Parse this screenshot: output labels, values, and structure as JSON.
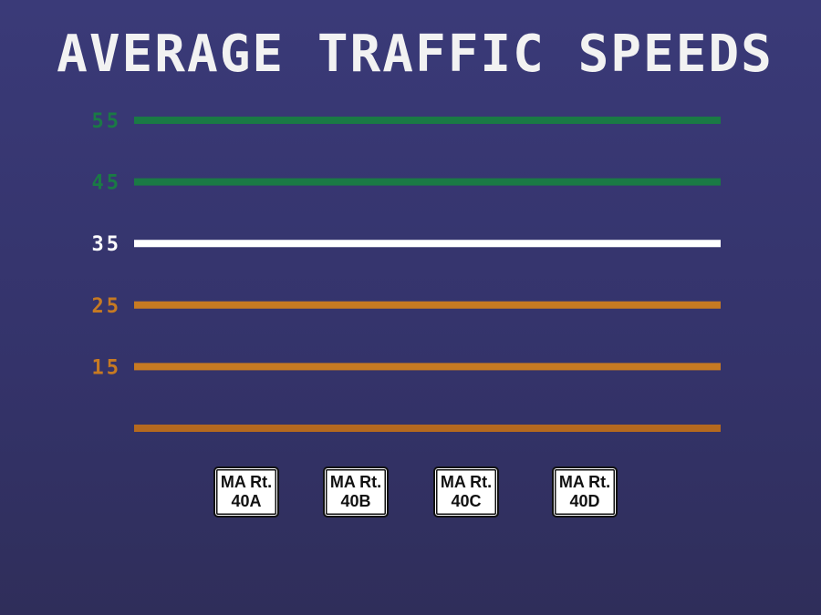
{
  "chart_data": {
    "type": "line",
    "title": "AVERAGE TRAFFIC SPEEDS",
    "ylabel": "",
    "xlabel": "",
    "ylim": [
      5,
      55
    ],
    "y_ticks": [
      {
        "label": "55",
        "value": 55,
        "color": "#1a7a45"
      },
      {
        "label": "45",
        "value": 45,
        "color": "#1a7a45"
      },
      {
        "label": "35",
        "value": 35,
        "color": "#ffffff"
      },
      {
        "label": "25",
        "value": 25,
        "color": "#c77a22"
      },
      {
        "label": "15",
        "value": 15,
        "color": "#c77a22"
      },
      {
        "label": "",
        "value": 5,
        "color": "#b5691e"
      }
    ],
    "categories": [
      {
        "line1": "MA Rt.",
        "line2": "40A"
      },
      {
        "line1": "MA Rt.",
        "line2": "40B"
      },
      {
        "line1": "MA Rt.",
        "line2": "40C"
      },
      {
        "line1": "MA Rt.",
        "line2": "40D"
      }
    ],
    "series": []
  }
}
